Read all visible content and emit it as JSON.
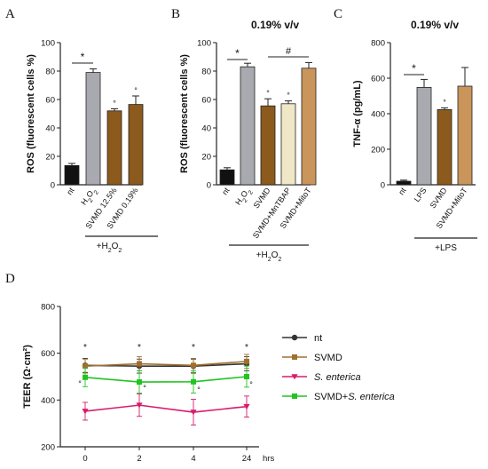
{
  "colors": {
    "nt": "#111111",
    "h2o2": "#a9a9b0",
    "svmd": "#8b5a1c",
    "mntbap": "#efe7c6",
    "mitot": "#c9955a",
    "line_nt": "#333333",
    "line_svmd": "#a0702e",
    "line_salmonella": "#d81b6b",
    "line_combo": "#22c322"
  },
  "chart_data": [
    {
      "panel": "A",
      "type": "bar",
      "title": "",
      "ylabel": "ROS (fluorescent cells %)",
      "ylim": [
        0,
        100
      ],
      "yticks": [
        "0",
        "20",
        "40",
        "60",
        "80",
        "100"
      ],
      "categories": [
        "nt",
        "H2O2",
        "SVMD 12.5%",
        "SVMD 0.19%"
      ],
      "values": [
        13.5,
        79,
        52,
        56.5
      ],
      "errors": [
        1.5,
        2.5,
        1.5,
        6
      ],
      "markers": [
        "",
        "",
        "°",
        "°"
      ],
      "bracket": {
        "from": 0,
        "to": 1,
        "label": "*"
      },
      "group_label": "+H2O2"
    },
    {
      "panel": "B",
      "type": "bar",
      "title": "0.19% v/v",
      "ylabel": "ROS (fluorescent cells %)",
      "ylim": [
        0,
        100
      ],
      "yticks": [
        "0",
        "20",
        "40",
        "60",
        "80",
        "100"
      ],
      "categories": [
        "nt",
        "H2O2",
        "SVMD",
        "SVMD+MnTBAP",
        "SVMD+MitoT"
      ],
      "values": [
        10.5,
        83,
        55.5,
        57,
        82
      ],
      "errors": [
        1.5,
        2.5,
        5,
        2,
        4
      ],
      "markers": [
        "",
        "",
        "°",
        "°",
        ""
      ],
      "bracket": {
        "from": 0,
        "to": 1,
        "label": "*"
      },
      "bracket2": {
        "from": 2,
        "to": 4,
        "label": "#"
      },
      "group_label": "+H2O2"
    },
    {
      "panel": "C",
      "type": "bar",
      "title": "0.19% v/v",
      "ylabel": "TNF-α (pg/mL)",
      "ylim": [
        0,
        800
      ],
      "yticks": [
        "0",
        "200",
        "400",
        "600",
        "800"
      ],
      "categories": [
        "nt",
        "LPS",
        "SVMD",
        "SVMD+MitoT"
      ],
      "values": [
        20,
        548,
        423,
        555
      ],
      "errors": [
        6,
        45,
        10,
        105
      ],
      "markers": [
        "",
        "",
        "°",
        ""
      ],
      "bracket": {
        "from": 0,
        "to": 1,
        "label": "*"
      },
      "group_label": "+LPS"
    },
    {
      "panel": "D",
      "type": "line",
      "title": "",
      "ylabel": "TEER (Ω·cm²)",
      "xlabel": "hrs",
      "ylim": [
        200,
        800
      ],
      "yticks": [
        "200",
        "400",
        "600",
        "800"
      ],
      "x": [
        "0",
        "2",
        "4",
        "24"
      ],
      "series": [
        {
          "name": "nt",
          "values": [
            548,
            545,
            545,
            555
          ],
          "errors": [
            30,
            30,
            30,
            30
          ]
        },
        {
          "name": "SVMD",
          "values": [
            545,
            555,
            548,
            565
          ],
          "errors": [
            30,
            30,
            30,
            30
          ]
        },
        {
          "name": "S. enterica",
          "values": [
            352,
            378,
            348,
            372
          ],
          "errors": [
            38,
            48,
            55,
            45
          ]
        },
        {
          "name": "SVMD+S. enterica",
          "values": [
            497,
            477,
            478,
            500
          ],
          "errors": [
            40,
            48,
            48,
            45
          ]
        }
      ],
      "star_markers": [
        "*",
        "*",
        "*",
        "*"
      ],
      "circle_markers": [
        "°",
        "°",
        "°",
        "°"
      ],
      "legend": "right"
    }
  ],
  "panel_labels": {
    "a": "A",
    "b": "B",
    "c": "C",
    "d": "D"
  }
}
